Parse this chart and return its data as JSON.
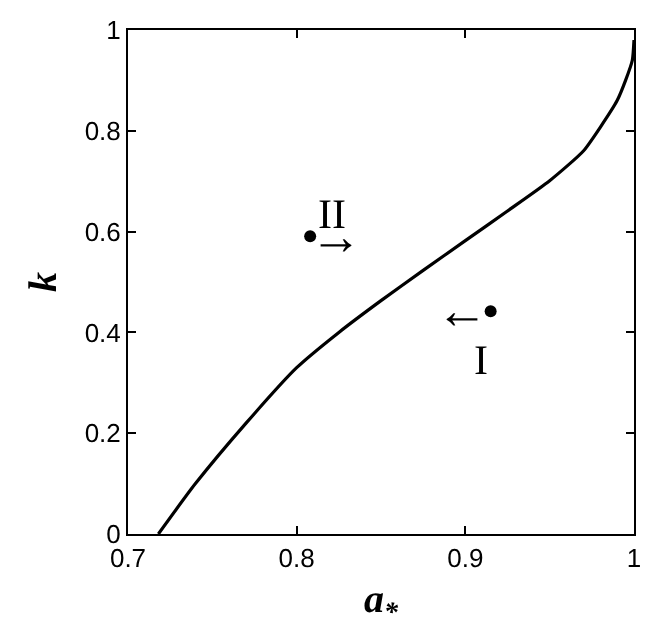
{
  "chart_data": {
    "type": "line",
    "xlabel": "a$_{*}$",
    "ylabel": "k",
    "xlim": [
      0.7,
      1
    ],
    "ylim": [
      0,
      1
    ],
    "xticks": [
      0.7,
      0.8,
      0.9,
      1
    ],
    "yticks": [
      0,
      0.2,
      0.4,
      0.6,
      0.8,
      1
    ],
    "series": [
      {
        "color": "#000000",
        "x": [
          0.718,
          0.74,
          0.77,
          0.8,
          0.825,
          0.85,
          0.875,
          0.9,
          0.925,
          0.95,
          0.97,
          0.98,
          0.99,
          0.995,
          0.999,
          1
        ],
        "values": [
          0,
          0.1,
          0.22,
          0.33,
          0.4,
          0.463,
          0.523,
          0.582,
          0.641,
          0.701,
          0.76,
          0.807,
          0.86,
          0.9,
          0.94,
          0.98
        ]
      },
      {
        "type": "scatter",
        "color": "#000000",
        "x": [
          0.808,
          0.915
        ],
        "values": [
          0.591,
          0.442
        ]
      }
    ],
    "annotations": [
      "II",
      "I",
      "→",
      "←"
    ]
  }
}
